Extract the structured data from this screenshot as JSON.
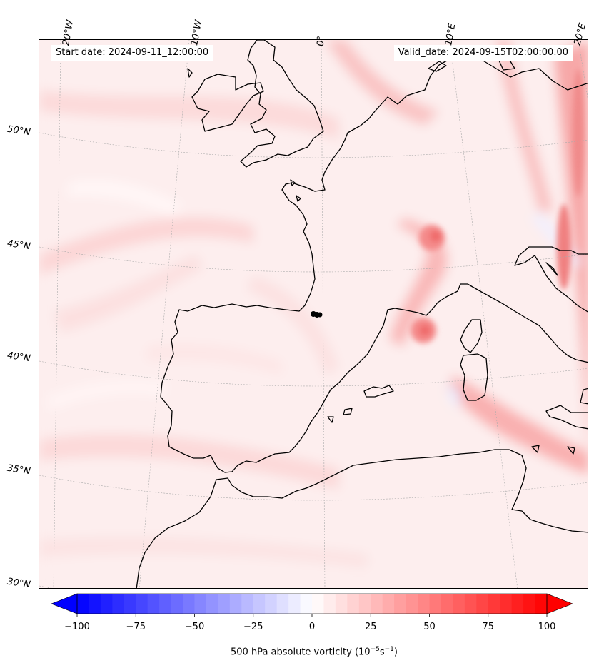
{
  "header": {
    "start_date": "Start date: 2024-09-11_12:00:00",
    "valid_date": "Valid_date: 2024-09-15T02:00:00.00"
  },
  "lon_labels": [
    "20°W",
    "10°W",
    "0°",
    "10°E",
    "20°E"
  ],
  "lat_labels": [
    "50°N",
    "45°N",
    "40°N",
    "35°N",
    "30°N"
  ],
  "colorbar": {
    "ticks": [
      "−100",
      "−75",
      "−50",
      "−25",
      "0",
      "25",
      "50",
      "75",
      "100"
    ],
    "label_prefix": "500 hPa absolute vorticity (10",
    "label_exp1": "−5",
    "label_mid": "s",
    "label_exp2": "−1",
    "label_suffix": ")",
    "range": [
      -100,
      100
    ],
    "colormap": "bwr",
    "min_color": "#0000ff",
    "mid_color": "#ffffff",
    "max_color": "#ff0000"
  },
  "map": {
    "coastline_color": "#000000",
    "gridline_color": "#aaaaaa",
    "background_color": "#fdeeee",
    "marker_color": "#000000"
  }
}
